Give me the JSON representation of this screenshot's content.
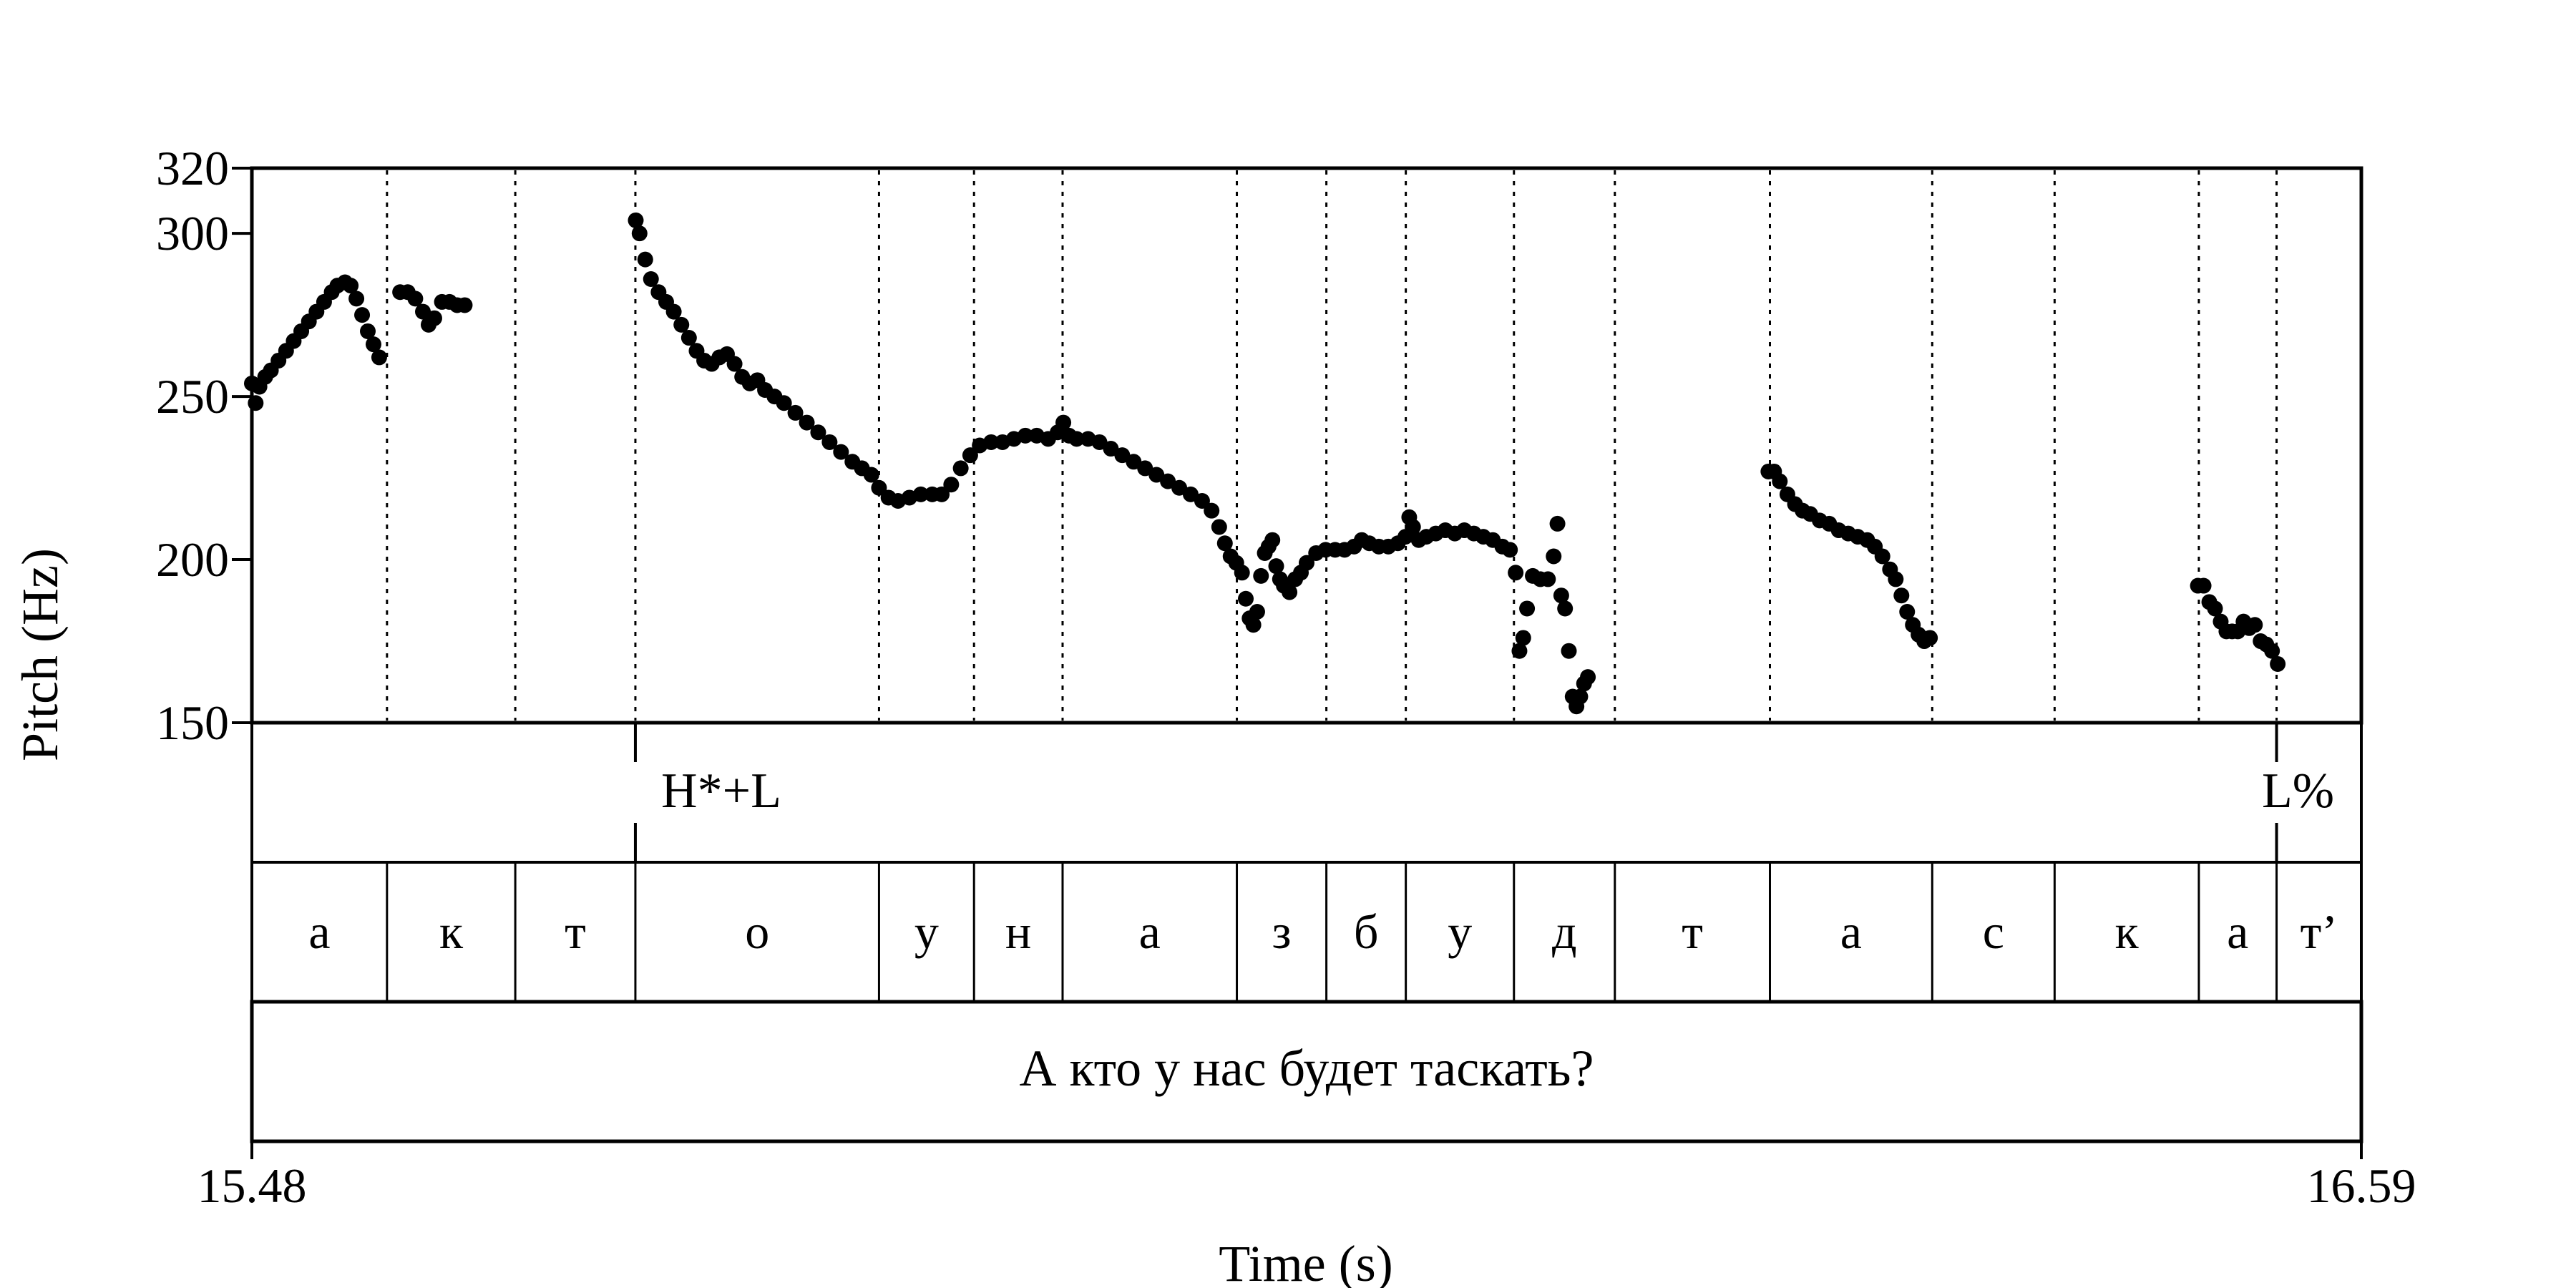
{
  "chart_data": {
    "type": "scatter",
    "xlabel": "Time (s)",
    "ylabel": "Pitch (Hz)",
    "xlim": [
      15.48,
      16.59
    ],
    "ylim": [
      150,
      320
    ],
    "x_tick_labels": [
      "15.48",
      "16.59"
    ],
    "y_ticks": [
      150,
      200,
      250,
      300,
      320
    ],
    "y_tick_labels": [
      "150",
      "200",
      "250",
      "300",
      "320"
    ],
    "grid": "vertical dotted lines at segment boundaries",
    "legend": "none",
    "segment_boundaries": [
      15.48,
      15.5511,
      15.6186,
      15.6818,
      15.81,
      15.86,
      15.9066,
      15.9983,
      16.0454,
      16.0872,
      16.1441,
      16.1972,
      16.2788,
      16.3642,
      16.4286,
      16.5045,
      16.5454,
      16.59
    ],
    "segments": [
      "а",
      "к",
      "т",
      "о",
      "у",
      "н",
      "а",
      "з",
      "б",
      "у",
      "д",
      "т",
      "а",
      "с",
      "к",
      "а",
      "т’"
    ],
    "tones": [
      {
        "label": "H*+L",
        "time": 15.6818
      },
      {
        "label": "L%",
        "time": 16.5454
      }
    ],
    "sentence": "А кто у нас будет таскать?",
    "series": [
      {
        "color": "#000000",
        "points": [
          [
            15.48,
            254
          ],
          [
            15.482,
            248
          ],
          [
            15.484,
            253
          ],
          [
            15.487,
            256
          ],
          [
            15.49,
            258
          ],
          [
            15.494,
            261
          ],
          [
            15.498,
            264
          ],
          [
            15.502,
            267
          ],
          [
            15.506,
            270
          ],
          [
            15.51,
            273
          ],
          [
            15.514,
            276
          ],
          [
            15.518,
            279
          ],
          [
            15.522,
            282
          ],
          [
            15.525,
            284
          ],
          [
            15.529,
            285
          ],
          [
            15.532,
            284
          ],
          [
            15.535,
            280
          ],
          [
            15.538,
            275
          ],
          [
            15.541,
            270
          ],
          [
            15.544,
            266
          ],
          [
            15.547,
            262
          ],
          [
            15.558,
            282
          ],
          [
            15.562,
            282
          ],
          [
            15.566,
            280
          ],
          [
            15.57,
            276
          ],
          [
            15.573,
            272
          ],
          [
            15.576,
            274
          ],
          [
            15.58,
            279
          ],
          [
            15.584,
            279
          ],
          [
            15.588,
            278
          ],
          [
            15.592,
            278
          ],
          [
            15.682,
            304
          ],
          [
            15.684,
            300
          ],
          [
            15.687,
            292
          ],
          [
            15.69,
            286
          ],
          [
            15.694,
            282
          ],
          [
            15.698,
            279
          ],
          [
            15.702,
            276
          ],
          [
            15.706,
            272
          ],
          [
            15.71,
            268
          ],
          [
            15.714,
            264
          ],
          [
            15.718,
            261
          ],
          [
            15.722,
            260
          ],
          [
            15.726,
            262
          ],
          [
            15.73,
            263
          ],
          [
            15.734,
            260
          ],
          [
            15.738,
            256
          ],
          [
            15.742,
            254
          ],
          [
            15.746,
            255
          ],
          [
            15.75,
            252
          ],
          [
            15.755,
            250
          ],
          [
            15.76,
            248
          ],
          [
            15.766,
            245
          ],
          [
            15.772,
            242
          ],
          [
            15.778,
            239
          ],
          [
            15.784,
            236
          ],
          [
            15.79,
            233
          ],
          [
            15.796,
            230
          ],
          [
            15.801,
            228
          ],
          [
            15.806,
            226
          ],
          [
            15.81,
            222
          ],
          [
            15.815,
            219
          ],
          [
            15.82,
            218
          ],
          [
            15.826,
            219
          ],
          [
            15.832,
            220
          ],
          [
            15.838,
            220
          ],
          [
            15.843,
            220
          ],
          [
            15.848,
            223
          ],
          [
            15.853,
            228
          ],
          [
            15.858,
            232
          ],
          [
            15.863,
            235
          ],
          [
            15.869,
            236
          ],
          [
            15.875,
            236
          ],
          [
            15.881,
            237
          ],
          [
            15.887,
            238
          ],
          [
            15.893,
            238
          ],
          [
            15.899,
            237
          ],
          [
            15.904,
            239
          ],
          [
            15.907,
            242
          ],
          [
            15.91,
            238
          ],
          [
            15.914,
            237
          ],
          [
            15.92,
            237
          ],
          [
            15.926,
            236
          ],
          [
            15.932,
            234
          ],
          [
            15.938,
            232
          ],
          [
            15.944,
            230
          ],
          [
            15.95,
            228
          ],
          [
            15.956,
            226
          ],
          [
            15.962,
            224
          ],
          [
            15.968,
            222
          ],
          [
            15.974,
            220
          ],
          [
            15.98,
            218
          ],
          [
            15.985,
            215
          ],
          [
            15.989,
            210
          ],
          [
            15.992,
            205
          ],
          [
            15.995,
            201
          ],
          [
            15.998,
            199
          ],
          [
            16.001,
            196
          ],
          [
            16.003,
            188
          ],
          [
            16.005,
            182
          ],
          [
            16.007,
            180
          ],
          [
            16.009,
            184
          ],
          [
            16.011,
            195
          ],
          [
            16.013,
            202
          ],
          [
            16.015,
            204
          ],
          [
            16.017,
            206
          ],
          [
            16.019,
            198
          ],
          [
            16.021,
            194
          ],
          [
            16.023,
            192
          ],
          [
            16.026,
            190
          ],
          [
            16.029,
            194
          ],
          [
            16.032,
            196
          ],
          [
            16.035,
            199
          ],
          [
            16.04,
            202
          ],
          [
            16.045,
            203
          ],
          [
            16.05,
            203
          ],
          [
            16.055,
            203
          ],
          [
            16.06,
            204
          ],
          [
            16.064,
            206
          ],
          [
            16.068,
            205
          ],
          [
            16.073,
            204
          ],
          [
            16.078,
            204
          ],
          [
            16.083,
            205
          ],
          [
            16.087,
            207
          ],
          [
            16.089,
            213
          ],
          [
            16.091,
            210
          ],
          [
            16.094,
            206
          ],
          [
            16.098,
            207
          ],
          [
            16.103,
            208
          ],
          [
            16.108,
            209
          ],
          [
            16.113,
            208
          ],
          [
            16.118,
            209
          ],
          [
            16.123,
            208
          ],
          [
            16.128,
            207
          ],
          [
            16.133,
            206
          ],
          [
            16.138,
            204
          ],
          [
            16.142,
            203
          ],
          [
            16.145,
            196
          ],
          [
            16.147,
            172
          ],
          [
            16.149,
            176
          ],
          [
            16.151,
            185
          ],
          [
            16.154,
            195
          ],
          [
            16.158,
            194
          ],
          [
            16.162,
            194
          ],
          [
            16.165,
            201
          ],
          [
            16.167,
            211
          ],
          [
            16.169,
            189
          ],
          [
            16.171,
            185
          ],
          [
            16.173,
            172
          ],
          [
            16.175,
            158
          ],
          [
            16.177,
            155
          ],
          [
            16.179,
            158
          ],
          [
            16.181,
            162
          ],
          [
            16.183,
            164
          ],
          [
            16.278,
            227
          ],
          [
            16.281,
            227
          ],
          [
            16.284,
            224
          ],
          [
            16.288,
            220
          ],
          [
            16.292,
            217
          ],
          [
            16.296,
            215
          ],
          [
            16.3,
            214
          ],
          [
            16.305,
            212
          ],
          [
            16.31,
            211
          ],
          [
            16.315,
            209
          ],
          [
            16.32,
            208
          ],
          [
            16.325,
            207
          ],
          [
            16.33,
            206
          ],
          [
            16.334,
            204
          ],
          [
            16.338,
            201
          ],
          [
            16.342,
            197
          ],
          [
            16.345,
            194
          ],
          [
            16.348,
            189
          ],
          [
            16.351,
            184
          ],
          [
            16.354,
            180
          ],
          [
            16.357,
            177
          ],
          [
            16.36,
            175
          ],
          [
            16.363,
            176
          ],
          [
            16.504,
            192
          ],
          [
            16.507,
            192
          ],
          [
            16.51,
            187
          ],
          [
            16.513,
            185
          ],
          [
            16.516,
            181
          ],
          [
            16.519,
            178
          ],
          [
            16.522,
            178
          ],
          [
            16.525,
            178
          ],
          [
            16.528,
            181
          ],
          [
            16.531,
            179
          ],
          [
            16.534,
            180
          ],
          [
            16.537,
            175
          ],
          [
            16.54,
            174
          ],
          [
            16.543,
            172
          ],
          [
            16.546,
            168
          ]
        ]
      }
    ]
  }
}
